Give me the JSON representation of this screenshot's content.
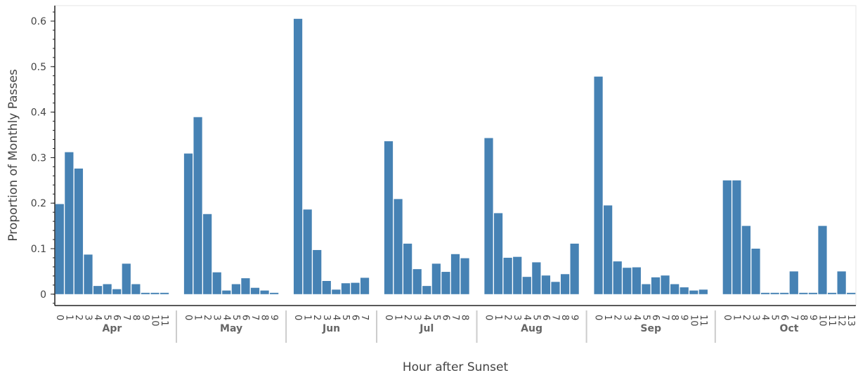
{
  "chart_data": {
    "type": "bar",
    "x_label": "Hour after Sunset",
    "y_label": "Proportion of Monthly Passes",
    "color": "#4682b4",
    "ylim": [
      -0.025,
      0.634
    ],
    "yticks": [
      0,
      0.1,
      0.2,
      0.3,
      0.4,
      0.5,
      0.6
    ],
    "groups": [
      {
        "name": "Apr",
        "categories": [
          "0",
          "1",
          "2",
          "3",
          "4",
          "5",
          "6",
          "7",
          "8",
          "9",
          "10",
          "11"
        ],
        "values": [
          0.198,
          0.312,
          0.276,
          0.087,
          0.018,
          0.022,
          0.011,
          0.067,
          0.022,
          0.003,
          0.003,
          0.003
        ]
      },
      {
        "name": "May",
        "categories": [
          "0",
          "1",
          "2",
          "3",
          "4",
          "5",
          "6",
          "7",
          "8",
          "9"
        ],
        "values": [
          0.309,
          0.389,
          0.176,
          0.048,
          0.008,
          0.022,
          0.035,
          0.014,
          0.008,
          0.003
        ]
      },
      {
        "name": "Jun",
        "categories": [
          "0",
          "1",
          "2",
          "3",
          "4",
          "5",
          "6",
          "7"
        ],
        "values": [
          0.605,
          0.186,
          0.097,
          0.029,
          0.01,
          0.024,
          0.025,
          0.036
        ]
      },
      {
        "name": "Jul",
        "categories": [
          "0",
          "1",
          "2",
          "3",
          "4",
          "5",
          "6",
          "7",
          "8"
        ],
        "values": [
          0.336,
          0.209,
          0.111,
          0.055,
          0.018,
          0.067,
          0.049,
          0.088,
          0.079
        ]
      },
      {
        "name": "Aug",
        "categories": [
          "0",
          "1",
          "2",
          "3",
          "4",
          "5",
          "6",
          "7",
          "8",
          "9"
        ],
        "values": [
          0.343,
          0.178,
          0.08,
          0.082,
          0.038,
          0.07,
          0.041,
          0.027,
          0.044,
          0.111
        ]
      },
      {
        "name": "Sep",
        "categories": [
          "0",
          "1",
          "2",
          "3",
          "4",
          "5",
          "6",
          "7",
          "8",
          "9",
          "10",
          "11"
        ],
        "values": [
          0.478,
          0.195,
          0.072,
          0.058,
          0.059,
          0.022,
          0.037,
          0.041,
          0.022,
          0.015,
          0.008,
          0.01
        ]
      },
      {
        "name": "Oct",
        "categories": [
          "0",
          "1",
          "2",
          "3",
          "4",
          "5",
          "6",
          "7",
          "8",
          "9",
          "10",
          "11",
          "12",
          "13"
        ],
        "values": [
          0.25,
          0.25,
          0.15,
          0.1,
          0.003,
          0.003,
          0.003,
          0.05,
          0.003,
          0.003,
          0.15,
          0.003,
          0.05,
          0.003
        ]
      }
    ]
  }
}
